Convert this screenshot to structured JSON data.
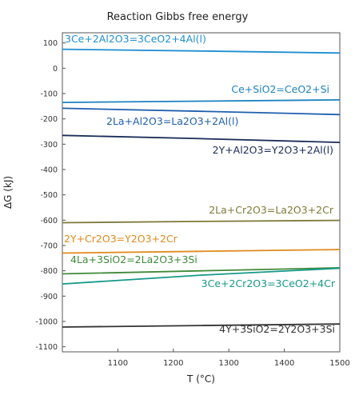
{
  "chart_data": {
    "type": "line",
    "title": "Reaction Gibbs free energy",
    "xlabel": "T (°C)",
    "ylabel": "ΔG (kJ)",
    "xlim": [
      1000,
      1500
    ],
    "ylim": [
      -1120,
      140
    ],
    "x_ticks": [
      1100,
      1200,
      1300,
      1400,
      1500
    ],
    "y_ticks": [
      100,
      0,
      -100,
      -200,
      -300,
      -400,
      -500,
      -600,
      -700,
      -800,
      -900,
      -1000,
      -1100
    ],
    "grid": false,
    "legend": "none (series labeled directly on the lines)",
    "series": [
      {
        "name": "3Ce+2Al2O3=3CeO2+4Al(l)",
        "color": "#1e8fd0",
        "x": [
          1000,
          1250,
          1500
        ],
        "y": [
          75,
          68,
          60
        ]
      },
      {
        "name": "Ce+SiO2=CeO2+Si",
        "color": "#1b82bf",
        "x": [
          1000,
          1250,
          1500
        ],
        "y": [
          -135,
          -130,
          -125
        ]
      },
      {
        "name": "2La+Al2O3=La2O3+2Al(l)",
        "color": "#1f5fae",
        "x": [
          1000,
          1250,
          1500
        ],
        "y": [
          -158,
          -170,
          -183
        ]
      },
      {
        "name": "2Y+Al2O3=Y2O3+2Al(l)",
        "color": "#1a2c57",
        "x": [
          1000,
          1250,
          1500
        ],
        "y": [
          -265,
          -278,
          -293
        ]
      },
      {
        "name": "2La+Cr2O3=La2O3+2Cr",
        "color": "#7f7a3a",
        "x": [
          1000,
          1250,
          1500
        ],
        "y": [
          -610,
          -605,
          -601
        ]
      },
      {
        "name": "2Y+Cr2O3=Y2O3+2Cr",
        "color": "#e08a1b",
        "x": [
          1000,
          1250,
          1500
        ],
        "y": [
          -730,
          -723,
          -716
        ]
      },
      {
        "name": "4La+3SiO2=2La2O3+3Si",
        "color": "#3f8a3a",
        "x": [
          1000,
          1250,
          1500
        ],
        "y": [
          -812,
          -800,
          -788
        ]
      },
      {
        "name": "3Ce+2Cr2O3=3CeO2+4Cr",
        "color": "#15998a",
        "x": [
          1000,
          1250,
          1500
        ],
        "y": [
          -852,
          -817,
          -790
        ]
      },
      {
        "name": "4Y+3SiO2=2Y2O3+3Si",
        "color": "#333333",
        "x": [
          1000,
          1250,
          1500
        ],
        "y": [
          -1022,
          -1016,
          -1010
        ]
      }
    ],
    "annotations": [
      {
        "text": "3Ce+2Al2O3=3CeO2+4Al(l)",
        "series": 0,
        "position": "upper-left"
      },
      {
        "text": "Ce+SiO2=CeO2+Si",
        "series": 1,
        "position": "upper-right"
      },
      {
        "text": "2La+Al2O3=La2O3+2Al(l)",
        "series": 2,
        "position": "center"
      },
      {
        "text": "2Y+Al2O3=Y2O3+2Al(l)",
        "series": 3,
        "position": "lower-right"
      },
      {
        "text": "2La+Cr2O3=La2O3+2Cr",
        "series": 4,
        "position": "upper-right"
      },
      {
        "text": "2Y+Cr2O3=Y2O3+2Cr",
        "series": 5,
        "position": "upper-left"
      },
      {
        "text": "4La+3SiO2=2La2O3+3Si",
        "series": 6,
        "position": "upper-left"
      },
      {
        "text": "3Ce+2Cr2O3=3CeO2+4Cr",
        "series": 7,
        "position": "lower-right"
      },
      {
        "text": "4Y+3SiO2=2Y2O3+3Si",
        "series": 8,
        "position": "lower-right"
      }
    ]
  }
}
